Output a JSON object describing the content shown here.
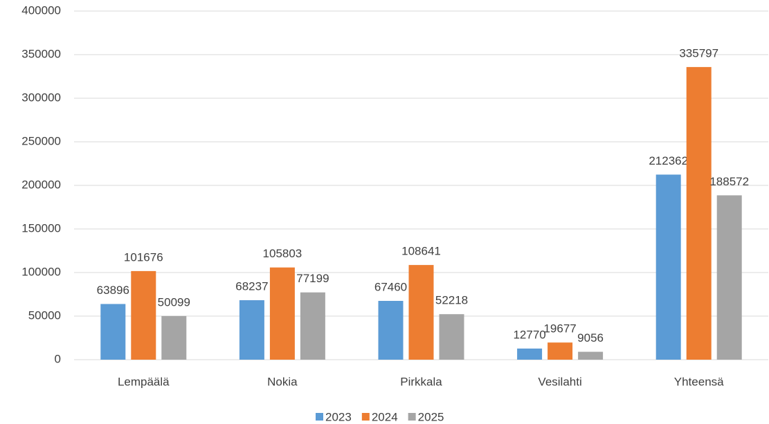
{
  "chart_data": {
    "type": "bar",
    "categories": [
      "Lempäälä",
      "Nokia",
      "Pirkkala",
      "Vesilahti",
      "Yhteensä"
    ],
    "series": [
      {
        "name": "2023",
        "color": "#5b9bd5",
        "values": [
          63896,
          68237,
          67460,
          12770,
          212362
        ]
      },
      {
        "name": "2024",
        "color": "#ed7d31",
        "values": [
          101676,
          105803,
          108641,
          19677,
          335797
        ]
      },
      {
        "name": "2025",
        "color": "#a5a5a5",
        "values": [
          50099,
          77199,
          52218,
          9056,
          188572
        ]
      }
    ],
    "ylim": [
      0,
      400000
    ],
    "yticks": [
      0,
      50000,
      100000,
      150000,
      200000,
      250000,
      300000,
      350000,
      400000
    ],
    "grid": true,
    "legend": "bottom"
  }
}
